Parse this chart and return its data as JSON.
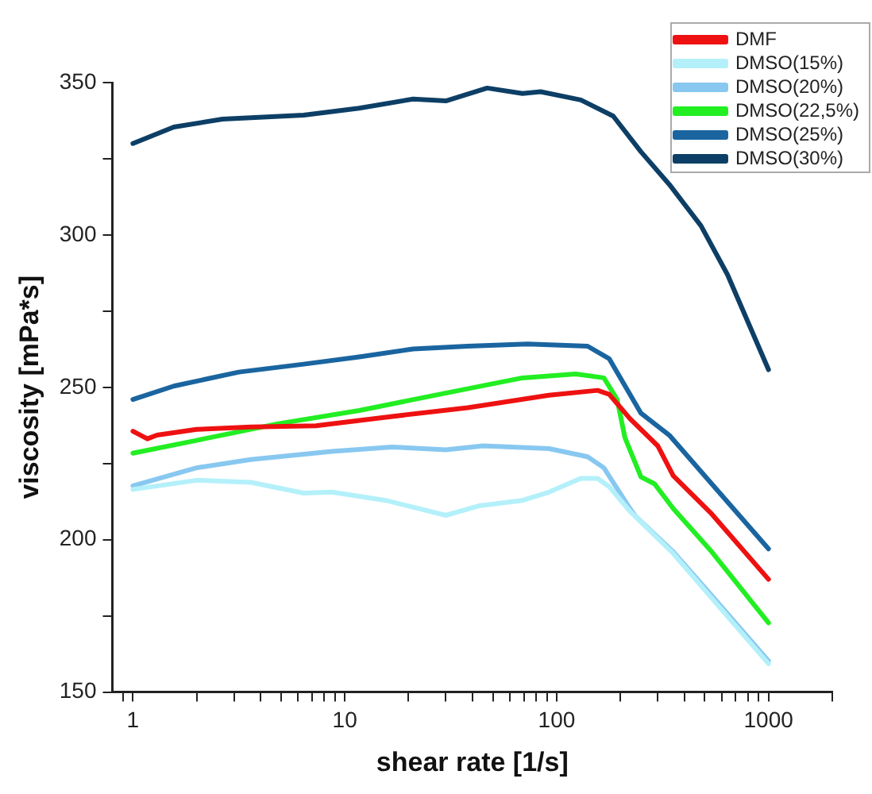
{
  "chart_data": {
    "type": "line",
    "xlabel": "shear rate [1/s]",
    "ylabel": "viscosity [mPa*s]",
    "log": "x",
    "xlim": [
      0.8,
      2000
    ],
    "ylim": [
      150,
      350
    ],
    "xticks": [
      {
        "value": 0.9,
        "label": null
      },
      1,
      {
        "value": 2,
        "label": null
      },
      {
        "value": 3,
        "label": null
      },
      {
        "value": 4,
        "label": null
      },
      {
        "value": 5,
        "label": null
      },
      {
        "value": 6,
        "label": null
      },
      {
        "value": 7,
        "label": null
      },
      {
        "value": 8,
        "label": null
      },
      {
        "value": 9,
        "label": null
      },
      10,
      {
        "value": 20,
        "label": null
      },
      {
        "value": 30,
        "label": null
      },
      {
        "value": 40,
        "label": null
      },
      {
        "value": 50,
        "label": null
      },
      {
        "value": 60,
        "label": null
      },
      {
        "value": 70,
        "label": null
      },
      {
        "value": 80,
        "label": null
      },
      {
        "value": 90,
        "label": null
      },
      100,
      {
        "value": 200,
        "label": null
      },
      {
        "value": 300,
        "label": null
      },
      {
        "value": 400,
        "label": null
      },
      {
        "value": 500,
        "label": null
      },
      {
        "value": 600,
        "label": null
      },
      {
        "value": 700,
        "label": null
      },
      {
        "value": 800,
        "label": null
      },
      {
        "value": 900,
        "label": null
      },
      1000,
      {
        "value": 2000,
        "label": null
      }
    ],
    "yticks": [
      150,
      {
        "value": 175,
        "label": null
      },
      200,
      {
        "value": 225,
        "label": null
      },
      250,
      {
        "value": 275,
        "label": null
      },
      300,
      {
        "value": 325,
        "label": null
      },
      350
    ],
    "grid": false,
    "legend": "top right",
    "marker": "none",
    "line_style": "solid",
    "series": [
      {
        "name": "DMF",
        "color": "#ee1111",
        "x": [
          1,
          1.17,
          1.3,
          2,
          3.6,
          7.3,
          15.6,
          38,
          92,
          156,
          177,
          222,
          300,
          355,
          540,
          1000
        ],
        "values": [
          235.6,
          233.1,
          234.3,
          236.2,
          237,
          237.4,
          240.2,
          243.3,
          247.4,
          249,
          247.7,
          239.7,
          230.8,
          221,
          208.4,
          187
        ]
      },
      {
        "name": "DMSO(15%)",
        "color": "#b4f0fa",
        "x": [
          1,
          2,
          3.6,
          6.4,
          8.7,
          15.6,
          30,
          43,
          69,
          92,
          130,
          156,
          177,
          222,
          355,
          540,
          1000
        ],
        "values": [
          216.5,
          219.5,
          218.8,
          215.3,
          215.6,
          212.9,
          208,
          211.1,
          212.9,
          215.6,
          220.1,
          220.1,
          217.4,
          209.3,
          195.5,
          180.8,
          159.3
        ]
      },
      {
        "name": "DMSO(20%)",
        "color": "#88c8f0",
        "x": [
          1,
          2,
          3.6,
          8.7,
          16.7,
          30,
          45,
          92,
          140,
          167,
          222,
          237,
          355,
          540,
          1000
        ],
        "values": [
          217.7,
          223.6,
          226.3,
          229,
          230.4,
          229.5,
          230.8,
          229.9,
          227.2,
          223.6,
          210.2,
          207.5,
          196,
          181.6,
          160.2
        ]
      },
      {
        "name": "DMSO(22,5%)",
        "color": "#22ee22",
        "x": [
          1,
          2,
          4.8,
          11.7,
          28,
          69,
          123,
          167,
          193,
          210,
          250,
          290,
          355,
          540,
          1000
        ],
        "values": [
          228.4,
          232.6,
          238,
          242.4,
          247.7,
          253.1,
          254.4,
          253.1,
          246,
          233.5,
          220.6,
          218.3,
          210.2,
          196,
          172.7
        ]
      },
      {
        "name": "DMSO(25%)",
        "color": "#1a65a0",
        "x": [
          1,
          1.56,
          3.16,
          6.4,
          11.7,
          21,
          38,
          73,
          140,
          177,
          250,
          340,
          540,
          1000
        ],
        "values": [
          246,
          250.4,
          255,
          257.6,
          260,
          262.6,
          263.5,
          264.2,
          263.5,
          259.4,
          241.5,
          234.3,
          218.3,
          197
        ]
      },
      {
        "name": "DMSO(30%)",
        "color": "#0d3f66",
        "x": [
          1,
          1.56,
          2.65,
          6.4,
          11.7,
          21,
          30,
          47,
          69,
          84,
          130,
          185,
          250,
          340,
          480,
          640,
          1000
        ],
        "values": [
          330,
          335.4,
          338,
          339.3,
          341.6,
          344.6,
          344,
          348.2,
          346.4,
          347,
          344.3,
          339,
          327.3,
          316.6,
          303,
          287,
          255.8
        ]
      }
    ]
  }
}
